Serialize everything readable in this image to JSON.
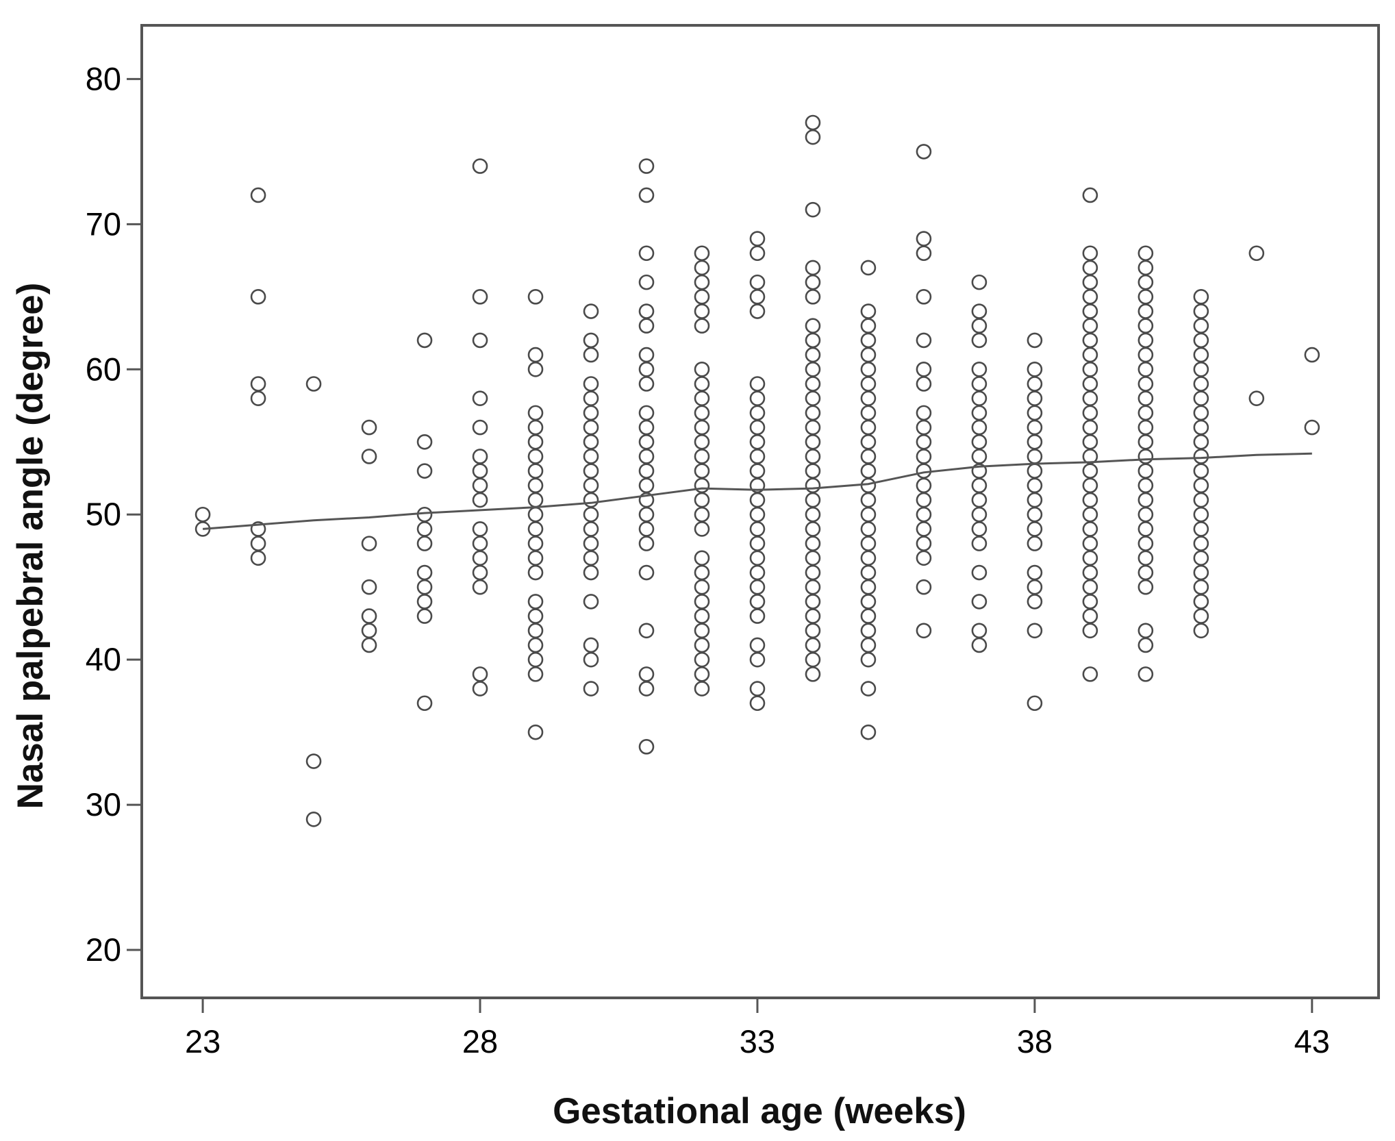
{
  "chart_data": {
    "type": "scatter",
    "xlabel": "Gestational age (weeks)",
    "ylabel": "Nasal palpebral angle (degree)",
    "xlim": [
      21.9,
      44.2
    ],
    "ylim": [
      16.7,
      83.7
    ],
    "x_ticks": [
      "23",
      "28",
      "33",
      "38",
      "43"
    ],
    "y_ticks": [
      "20",
      "30",
      "40",
      "50",
      "60",
      "70",
      "80"
    ],
    "grid": false,
    "marker": "open-circle",
    "colors": {
      "points": "#4a4a4a",
      "line": "#555555",
      "frame": "#555555"
    },
    "points": [
      [
        23,
        50
      ],
      [
        23,
        49
      ],
      [
        24,
        72
      ],
      [
        24,
        65
      ],
      [
        24,
        59
      ],
      [
        24,
        58
      ],
      [
        24,
        49
      ],
      [
        24,
        48
      ],
      [
        24,
        47
      ],
      [
        25,
        59
      ],
      [
        25,
        33
      ],
      [
        25,
        29
      ],
      [
        26,
        56
      ],
      [
        26,
        54
      ],
      [
        26,
        48
      ],
      [
        26,
        45
      ],
      [
        26,
        43
      ],
      [
        26,
        42
      ],
      [
        26,
        41
      ],
      [
        27,
        62
      ],
      [
        27,
        55
      ],
      [
        27,
        53
      ],
      [
        27,
        50
      ],
      [
        27,
        49
      ],
      [
        27,
        48
      ],
      [
        27,
        46
      ],
      [
        27,
        45
      ],
      [
        27,
        44
      ],
      [
        27,
        43
      ],
      [
        27,
        37
      ],
      [
        28,
        74
      ],
      [
        28,
        65
      ],
      [
        28,
        62
      ],
      [
        28,
        58
      ],
      [
        28,
        56
      ],
      [
        28,
        54
      ],
      [
        28,
        53
      ],
      [
        28,
        52
      ],
      [
        28,
        51
      ],
      [
        28,
        49
      ],
      [
        28,
        48
      ],
      [
        28,
        47
      ],
      [
        28,
        46
      ],
      [
        28,
        45
      ],
      [
        28,
        39
      ],
      [
        28,
        38
      ],
      [
        29,
        65
      ],
      [
        29,
        61
      ],
      [
        29,
        60
      ],
      [
        29,
        57
      ],
      [
        29,
        56
      ],
      [
        29,
        55
      ],
      [
        29,
        54
      ],
      [
        29,
        53
      ],
      [
        29,
        52
      ],
      [
        29,
        51
      ],
      [
        29,
        50
      ],
      [
        29,
        49
      ],
      [
        29,
        48
      ],
      [
        29,
        47
      ],
      [
        29,
        46
      ],
      [
        29,
        44
      ],
      [
        29,
        43
      ],
      [
        29,
        42
      ],
      [
        29,
        41
      ],
      [
        29,
        40
      ],
      [
        29,
        39
      ],
      [
        29,
        35
      ],
      [
        30,
        64
      ],
      [
        30,
        62
      ],
      [
        30,
        61
      ],
      [
        30,
        59
      ],
      [
        30,
        58
      ],
      [
        30,
        57
      ],
      [
        30,
        56
      ],
      [
        30,
        55
      ],
      [
        30,
        54
      ],
      [
        30,
        53
      ],
      [
        30,
        52
      ],
      [
        30,
        51
      ],
      [
        30,
        50
      ],
      [
        30,
        49
      ],
      [
        30,
        48
      ],
      [
        30,
        47
      ],
      [
        30,
        46
      ],
      [
        30,
        44
      ],
      [
        30,
        41
      ],
      [
        30,
        40
      ],
      [
        30,
        38
      ],
      [
        31,
        74
      ],
      [
        31,
        72
      ],
      [
        31,
        68
      ],
      [
        31,
        66
      ],
      [
        31,
        64
      ],
      [
        31,
        63
      ],
      [
        31,
        61
      ],
      [
        31,
        60
      ],
      [
        31,
        59
      ],
      [
        31,
        57
      ],
      [
        31,
        56
      ],
      [
        31,
        55
      ],
      [
        31,
        54
      ],
      [
        31,
        53
      ],
      [
        31,
        52
      ],
      [
        31,
        51
      ],
      [
        31,
        50
      ],
      [
        31,
        49
      ],
      [
        31,
        48
      ],
      [
        31,
        46
      ],
      [
        31,
        42
      ],
      [
        31,
        39
      ],
      [
        31,
        38
      ],
      [
        31,
        34
      ],
      [
        32,
        68
      ],
      [
        32,
        67
      ],
      [
        32,
        66
      ],
      [
        32,
        65
      ],
      [
        32,
        64
      ],
      [
        32,
        63
      ],
      [
        32,
        60
      ],
      [
        32,
        59
      ],
      [
        32,
        58
      ],
      [
        32,
        57
      ],
      [
        32,
        56
      ],
      [
        32,
        55
      ],
      [
        32,
        54
      ],
      [
        32,
        53
      ],
      [
        32,
        52
      ],
      [
        32,
        51
      ],
      [
        32,
        50
      ],
      [
        32,
        49
      ],
      [
        32,
        47
      ],
      [
        32,
        46
      ],
      [
        32,
        45
      ],
      [
        32,
        44
      ],
      [
        32,
        43
      ],
      [
        32,
        42
      ],
      [
        32,
        41
      ],
      [
        32,
        40
      ],
      [
        32,
        39
      ],
      [
        32,
        38
      ],
      [
        33,
        69
      ],
      [
        33,
        68
      ],
      [
        33,
        66
      ],
      [
        33,
        65
      ],
      [
        33,
        64
      ],
      [
        33,
        59
      ],
      [
        33,
        58
      ],
      [
        33,
        57
      ],
      [
        33,
        56
      ],
      [
        33,
        55
      ],
      [
        33,
        54
      ],
      [
        33,
        53
      ],
      [
        33,
        52
      ],
      [
        33,
        51
      ],
      [
        33,
        50
      ],
      [
        33,
        49
      ],
      [
        33,
        48
      ],
      [
        33,
        47
      ],
      [
        33,
        46
      ],
      [
        33,
        45
      ],
      [
        33,
        44
      ],
      [
        33,
        43
      ],
      [
        33,
        41
      ],
      [
        33,
        40
      ],
      [
        33,
        38
      ],
      [
        33,
        37
      ],
      [
        34,
        77
      ],
      [
        34,
        76
      ],
      [
        34,
        71
      ],
      [
        34,
        67
      ],
      [
        34,
        66
      ],
      [
        34,
        65
      ],
      [
        34,
        63
      ],
      [
        34,
        62
      ],
      [
        34,
        61
      ],
      [
        34,
        60
      ],
      [
        34,
        59
      ],
      [
        34,
        58
      ],
      [
        34,
        57
      ],
      [
        34,
        56
      ],
      [
        34,
        55
      ],
      [
        34,
        54
      ],
      [
        34,
        53
      ],
      [
        34,
        52
      ],
      [
        34,
        51
      ],
      [
        34,
        50
      ],
      [
        34,
        49
      ],
      [
        34,
        48
      ],
      [
        34,
        47
      ],
      [
        34,
        46
      ],
      [
        34,
        45
      ],
      [
        34,
        44
      ],
      [
        34,
        43
      ],
      [
        34,
        42
      ],
      [
        34,
        41
      ],
      [
        34,
        40
      ],
      [
        34,
        39
      ],
      [
        35,
        67
      ],
      [
        35,
        64
      ],
      [
        35,
        63
      ],
      [
        35,
        62
      ],
      [
        35,
        61
      ],
      [
        35,
        60
      ],
      [
        35,
        59
      ],
      [
        35,
        58
      ],
      [
        35,
        57
      ],
      [
        35,
        56
      ],
      [
        35,
        55
      ],
      [
        35,
        54
      ],
      [
        35,
        53
      ],
      [
        35,
        52
      ],
      [
        35,
        51
      ],
      [
        35,
        50
      ],
      [
        35,
        49
      ],
      [
        35,
        48
      ],
      [
        35,
        47
      ],
      [
        35,
        46
      ],
      [
        35,
        45
      ],
      [
        35,
        44
      ],
      [
        35,
        43
      ],
      [
        35,
        42
      ],
      [
        35,
        41
      ],
      [
        35,
        40
      ],
      [
        35,
        38
      ],
      [
        35,
        35
      ],
      [
        36,
        75
      ],
      [
        36,
        69
      ],
      [
        36,
        68
      ],
      [
        36,
        65
      ],
      [
        36,
        62
      ],
      [
        36,
        60
      ],
      [
        36,
        59
      ],
      [
        36,
        57
      ],
      [
        36,
        56
      ],
      [
        36,
        55
      ],
      [
        36,
        54
      ],
      [
        36,
        53
      ],
      [
        36,
        52
      ],
      [
        36,
        51
      ],
      [
        36,
        50
      ],
      [
        36,
        49
      ],
      [
        36,
        48
      ],
      [
        36,
        47
      ],
      [
        36,
        45
      ],
      [
        36,
        42
      ],
      [
        37,
        66
      ],
      [
        37,
        64
      ],
      [
        37,
        63
      ],
      [
        37,
        62
      ],
      [
        37,
        60
      ],
      [
        37,
        59
      ],
      [
        37,
        58
      ],
      [
        37,
        57
      ],
      [
        37,
        56
      ],
      [
        37,
        55
      ],
      [
        37,
        54
      ],
      [
        37,
        53
      ],
      [
        37,
        52
      ],
      [
        37,
        51
      ],
      [
        37,
        50
      ],
      [
        37,
        49
      ],
      [
        37,
        48
      ],
      [
        37,
        46
      ],
      [
        37,
        44
      ],
      [
        37,
        42
      ],
      [
        37,
        41
      ],
      [
        38,
        62
      ],
      [
        38,
        60
      ],
      [
        38,
        59
      ],
      [
        38,
        58
      ],
      [
        38,
        57
      ],
      [
        38,
        56
      ],
      [
        38,
        55
      ],
      [
        38,
        54
      ],
      [
        38,
        53
      ],
      [
        38,
        52
      ],
      [
        38,
        51
      ],
      [
        38,
        50
      ],
      [
        38,
        49
      ],
      [
        38,
        48
      ],
      [
        38,
        46
      ],
      [
        38,
        45
      ],
      [
        38,
        44
      ],
      [
        38,
        42
      ],
      [
        38,
        37
      ],
      [
        39,
        72
      ],
      [
        39,
        68
      ],
      [
        39,
        67
      ],
      [
        39,
        66
      ],
      [
        39,
        65
      ],
      [
        39,
        64
      ],
      [
        39,
        63
      ],
      [
        39,
        62
      ],
      [
        39,
        61
      ],
      [
        39,
        60
      ],
      [
        39,
        59
      ],
      [
        39,
        58
      ],
      [
        39,
        57
      ],
      [
        39,
        56
      ],
      [
        39,
        55
      ],
      [
        39,
        54
      ],
      [
        39,
        53
      ],
      [
        39,
        52
      ],
      [
        39,
        51
      ],
      [
        39,
        50
      ],
      [
        39,
        49
      ],
      [
        39,
        48
      ],
      [
        39,
        47
      ],
      [
        39,
        46
      ],
      [
        39,
        45
      ],
      [
        39,
        44
      ],
      [
        39,
        43
      ],
      [
        39,
        42
      ],
      [
        39,
        39
      ],
      [
        40,
        68
      ],
      [
        40,
        67
      ],
      [
        40,
        66
      ],
      [
        40,
        65
      ],
      [
        40,
        64
      ],
      [
        40,
        63
      ],
      [
        40,
        62
      ],
      [
        40,
        61
      ],
      [
        40,
        60
      ],
      [
        40,
        59
      ],
      [
        40,
        58
      ],
      [
        40,
        57
      ],
      [
        40,
        56
      ],
      [
        40,
        55
      ],
      [
        40,
        54
      ],
      [
        40,
        53
      ],
      [
        40,
        52
      ],
      [
        40,
        51
      ],
      [
        40,
        50
      ],
      [
        40,
        49
      ],
      [
        40,
        48
      ],
      [
        40,
        47
      ],
      [
        40,
        46
      ],
      [
        40,
        45
      ],
      [
        40,
        42
      ],
      [
        40,
        41
      ],
      [
        40,
        39
      ],
      [
        41,
        65
      ],
      [
        41,
        64
      ],
      [
        41,
        63
      ],
      [
        41,
        62
      ],
      [
        41,
        61
      ],
      [
        41,
        60
      ],
      [
        41,
        59
      ],
      [
        41,
        58
      ],
      [
        41,
        57
      ],
      [
        41,
        56
      ],
      [
        41,
        55
      ],
      [
        41,
        54
      ],
      [
        41,
        53
      ],
      [
        41,
        52
      ],
      [
        41,
        51
      ],
      [
        41,
        50
      ],
      [
        41,
        49
      ],
      [
        41,
        48
      ],
      [
        41,
        47
      ],
      [
        41,
        46
      ],
      [
        41,
        45
      ],
      [
        41,
        44
      ],
      [
        41,
        43
      ],
      [
        41,
        42
      ],
      [
        42,
        68
      ],
      [
        42,
        58
      ],
      [
        43,
        61
      ],
      [
        43,
        56
      ]
    ],
    "trend_line": [
      [
        23,
        49.0
      ],
      [
        24,
        49.3
      ],
      [
        25,
        49.6
      ],
      [
        26,
        49.8
      ],
      [
        27,
        50.1
      ],
      [
        28,
        50.3
      ],
      [
        29,
        50.5
      ],
      [
        30,
        50.8
      ],
      [
        31,
        51.3
      ],
      [
        32,
        51.8
      ],
      [
        33,
        51.7
      ],
      [
        34,
        51.8
      ],
      [
        35,
        52.1
      ],
      [
        36,
        52.9
      ],
      [
        37,
        53.3
      ],
      [
        38,
        53.5
      ],
      [
        39,
        53.6
      ],
      [
        40,
        53.8
      ],
      [
        41,
        53.9
      ],
      [
        42,
        54.1
      ],
      [
        43,
        54.2
      ]
    ]
  }
}
